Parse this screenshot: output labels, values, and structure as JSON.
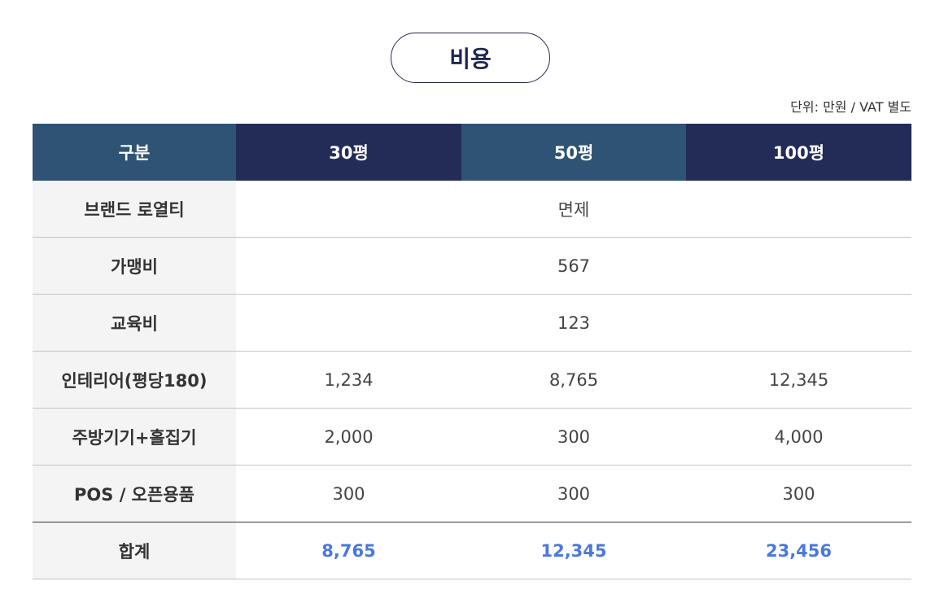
{
  "title": "비용",
  "unit_note": "단위: 만원 / VAT 별도",
  "table": {
    "headers": [
      "구분",
      "30평",
      "50평",
      "100평"
    ],
    "rows": [
      {
        "label": "브랜드 로열티",
        "merged": "면제"
      },
      {
        "label": "가맹비",
        "merged": "567"
      },
      {
        "label": "교육비",
        "merged": "123"
      },
      {
        "label": "인테리어(평당180)",
        "values": [
          "1,234",
          "8,765",
          "12,345"
        ]
      },
      {
        "label": "주방기기+홀집기",
        "values": [
          "2,000",
          "300",
          "4,000"
        ]
      },
      {
        "label": "POS / 오픈용품",
        "values": [
          "300",
          "300",
          "300"
        ]
      }
    ],
    "total": {
      "label": "합계",
      "values": [
        "8,765",
        "12,345",
        "23,456"
      ]
    }
  },
  "colors": {
    "header_light": "#2e5374",
    "header_dark": "#232c57",
    "total_value": "#4a78e0",
    "label_bg": "#f4f4f4"
  }
}
